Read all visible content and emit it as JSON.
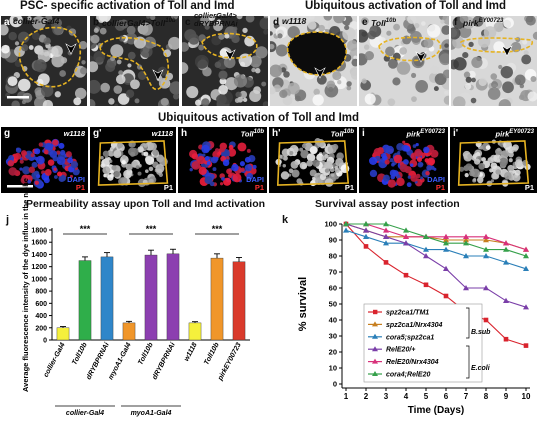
{
  "headers": {
    "top_left": "PSC- specific activation of Toll and Imd",
    "top_right": "Ubiquitous activation of Toll and Imd",
    "middle": "Ubiquitous activation of Toll and Imd",
    "bottom_left": "Permeability assay upon Toll and Imd activation",
    "bottom_right": "Survival assay post infection"
  },
  "top_panels": [
    {
      "letter": "a",
      "genotype": "collier-Gal4"
    },
    {
      "letter": "b",
      "genotype": "collierGal4>Toll10b"
    },
    {
      "letter": "c",
      "genotype": "collierGal4> dRYBPRNAi"
    },
    {
      "letter": "d",
      "genotype": "w1118"
    },
    {
      "letter": "e",
      "genotype": "Toll10b"
    },
    {
      "letter": "f",
      "genotype": "pirkEY00723"
    }
  ],
  "mid_panels": [
    {
      "letter": "g",
      "genotype": "w1118",
      "tags": [
        "DAPI",
        "P1"
      ]
    },
    {
      "letter": "g'",
      "genotype": "w1118",
      "tags": [
        "P1"
      ]
    },
    {
      "letter": "h",
      "genotype": "Toll10b",
      "tags": [
        "DAPI",
        "P1"
      ]
    },
    {
      "letter": "h'",
      "genotype": "Toll10b",
      "tags": [
        "P1"
      ]
    },
    {
      "letter": "i",
      "genotype": "pirkEY00723",
      "tags": [
        "DAPI",
        "P1"
      ]
    },
    {
      "letter": "i'",
      "genotype": "pirkEY00723",
      "tags": [
        "P1"
      ]
    }
  ],
  "chart_data": [
    {
      "panel": "j",
      "type": "bar",
      "title": "Permeability assay upon Toll and Imd activation",
      "ylabel": "Average fluorescence intensity of the dye influx in the niche",
      "ylim": [
        0,
        1800
      ],
      "yticks": [
        0,
        200,
        400,
        600,
        800,
        1000,
        1200,
        1400,
        1600,
        1800
      ],
      "categories": [
        "collier-Gal4",
        "Toll10b",
        "dRYBPRNAi",
        "myoA1-Gal4",
        "Toll10b",
        "dRYBPRNAi",
        "w1118",
        "Toll10b",
        "pirkEY00723"
      ],
      "values": [
        200,
        1300,
        1360,
        280,
        1390,
        1410,
        280,
        1340,
        1280
      ],
      "errors": [
        20,
        60,
        70,
        25,
        80,
        75,
        20,
        70,
        70
      ],
      "colors": [
        "#f5f03c",
        "#2fae4a",
        "#2f86c9",
        "#f0962a",
        "#8c3fb0",
        "#8c3fb0",
        "#f5f03c",
        "#f0962a",
        "#d93a2b"
      ],
      "significance": [
        "***",
        "***",
        "***"
      ],
      "groups": [
        "collier-Gal4",
        "myoA1-Gal4"
      ]
    },
    {
      "panel": "k",
      "type": "line",
      "title": "Survival assay post infection",
      "xlabel": "Time (Days)",
      "ylabel": "% survival",
      "x": [
        1,
        2,
        3,
        4,
        5,
        6,
        7,
        8,
        9,
        10
      ],
      "ylim": [
        0,
        100
      ],
      "yticks": [
        0,
        10,
        20,
        30,
        40,
        50,
        60,
        70,
        80,
        90,
        100
      ],
      "series": [
        {
          "name": "spz2ca1/TM1",
          "color": "#d9232d",
          "marker": "square",
          "values": [
            100,
            86,
            76,
            68,
            62,
            55,
            45,
            40,
            28,
            24
          ]
        },
        {
          "name": "spz2ca1/Nrx4304",
          "color": "#c77f1f",
          "marker": "triangle",
          "values": [
            100,
            96,
            92,
            92,
            92,
            90,
            90,
            90,
            88,
            84
          ]
        },
        {
          "name": "cora5;spz2ca1",
          "color": "#2a7fb8",
          "marker": "triangle",
          "values": [
            96,
            92,
            88,
            88,
            84,
            84,
            80,
            80,
            76,
            72
          ]
        },
        {
          "name": "RelE20/+",
          "color": "#7a3ea8",
          "marker": "triangle",
          "values": [
            100,
            96,
            92,
            88,
            80,
            72,
            60,
            60,
            52,
            48
          ]
        },
        {
          "name": "RelE20/Nrx4304",
          "color": "#d8317a",
          "marker": "triangle",
          "values": [
            100,
            100,
            96,
            92,
            92,
            92,
            92,
            92,
            88,
            84
          ]
        },
        {
          "name": "cora4;RelE20",
          "color": "#35a04a",
          "marker": "triangle",
          "values": [
            100,
            100,
            100,
            96,
            92,
            88,
            88,
            84,
            84,
            80
          ]
        }
      ],
      "brackets": [
        "B.sub",
        "E.coli"
      ]
    }
  ]
}
